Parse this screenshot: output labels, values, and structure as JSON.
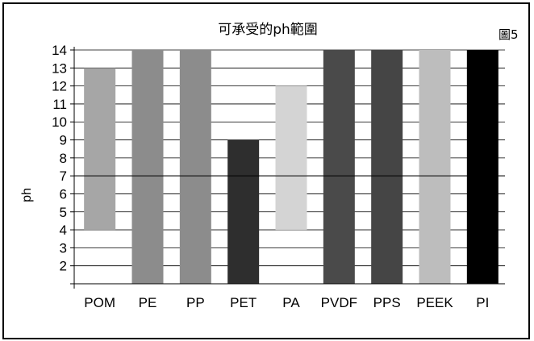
{
  "figure_label": "圖5",
  "chart_data": {
    "type": "bar",
    "title": "可承受的ph範圍",
    "xlabel": "",
    "ylabel": "ph",
    "ylim": [
      1,
      14
    ],
    "y_ticks": [
      2,
      3,
      4,
      5,
      6,
      7,
      8,
      9,
      10,
      11,
      12,
      13,
      14
    ],
    "grid": true,
    "reference_line": 7,
    "categories": [
      "POM",
      "PE",
      "PP",
      "PET",
      "PA",
      "PVDF",
      "PPS",
      "PEEK",
      "PI"
    ],
    "series": [
      {
        "low": [
          4,
          1,
          1,
          1,
          4,
          1,
          1,
          1,
          1
        ],
        "high": [
          13,
          14,
          14,
          9,
          12,
          14,
          14,
          14,
          14
        ],
        "colors": [
          "#a6a6a6",
          "#8c8c8c",
          "#8c8c8c",
          "#2e2e2e",
          "#d4d4d4",
          "#4a4a4a",
          "#454545",
          "#bdbdbd",
          "#000000"
        ]
      }
    ]
  }
}
